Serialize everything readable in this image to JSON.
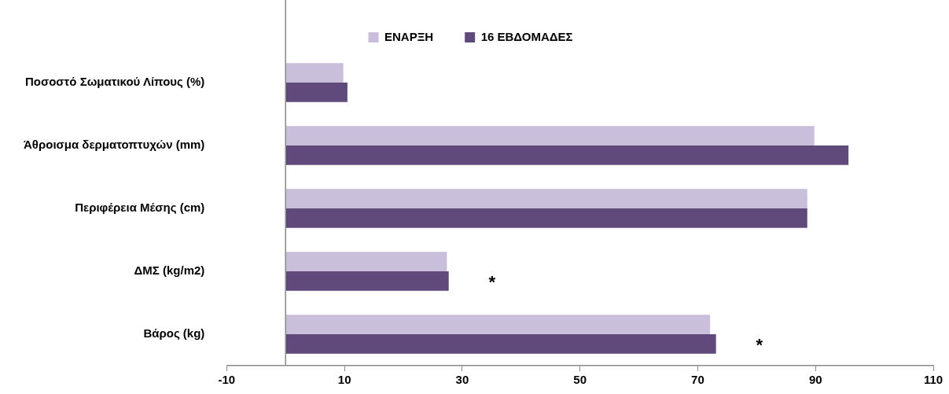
{
  "chart_data": {
    "type": "bar",
    "orientation": "horizontal",
    "categories": [
      "Ποσοστό Σωματικού Λίπους (%)",
      "Άθροισμα δερματοπτυχών (mm)",
      "Περιφέρεια Μέσης (cm)",
      "ΔΜΣ (kg/m2)",
      "Βάρος (kg)"
    ],
    "series": [
      {
        "name": "ΕΝΑΡΞΗ",
        "color": "#c9bfdb",
        "values": [
          9.8,
          89.8,
          88.6,
          27.4,
          72.1
        ]
      },
      {
        "name": "16 ΕΒΔΟΜΑΔΕΣ",
        "color": "#604a7b",
        "values": [
          10.5,
          95.6,
          88.6,
          27.7,
          73.1
        ]
      }
    ],
    "xlim": [
      -10,
      110
    ],
    "xticks": [
      -10,
      10,
      30,
      50,
      70,
      90,
      110
    ],
    "grid": false,
    "legend": "top",
    "annotations": [
      "*",
      "*"
    ]
  }
}
